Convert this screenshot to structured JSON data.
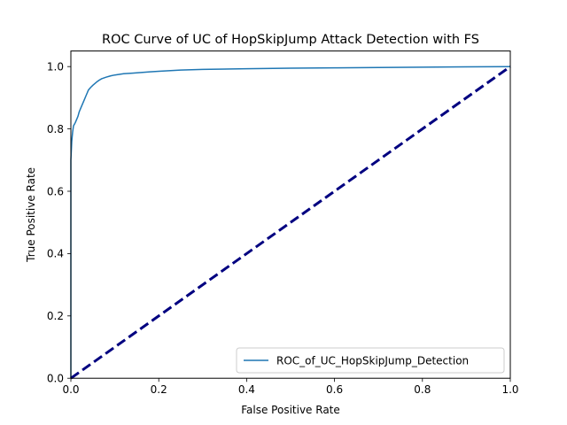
{
  "chart_data": {
    "type": "line",
    "title": "ROC Curve of UC of HopSkipJump Attack Detection with FS",
    "xlabel": "False Positive Rate",
    "ylabel": "True Positive Rate",
    "xlim": [
      0.0,
      1.0
    ],
    "ylim": [
      0.0,
      1.05
    ],
    "xticks": [
      "0.0",
      "0.2",
      "0.4",
      "0.6",
      "0.8",
      "1.0"
    ],
    "yticks": [
      "0.0",
      "0.2",
      "0.4",
      "0.6",
      "0.8",
      "1.0"
    ],
    "grid": false,
    "legend_position": "lower-right",
    "series": [
      {
        "name": "ROC_of_UC_HopSkipJump_Detection",
        "color": "#1f77b4",
        "style": "solid",
        "x": [
          0.0,
          0.0,
          0.002,
          0.004,
          0.006,
          0.008,
          0.01,
          0.013,
          0.016,
          0.019,
          0.022,
          0.025,
          0.028,
          0.031,
          0.034,
          0.037,
          0.04,
          0.045,
          0.05,
          0.055,
          0.06,
          0.065,
          0.07,
          0.08,
          0.09,
          0.1,
          0.11,
          0.12,
          0.14,
          0.16,
          0.18,
          0.2,
          0.25,
          0.3,
          0.4,
          0.5,
          0.6,
          0.7,
          0.8,
          0.9,
          1.0
        ],
        "y": [
          0.0,
          0.7,
          0.76,
          0.79,
          0.81,
          0.815,
          0.82,
          0.83,
          0.84,
          0.855,
          0.865,
          0.875,
          0.885,
          0.895,
          0.905,
          0.915,
          0.925,
          0.933,
          0.94,
          0.946,
          0.952,
          0.957,
          0.961,
          0.966,
          0.97,
          0.973,
          0.975,
          0.977,
          0.979,
          0.981,
          0.983,
          0.985,
          0.989,
          0.991,
          0.993,
          0.995,
          0.996,
          0.997,
          0.998,
          0.999,
          1.0
        ]
      },
      {
        "name": "",
        "color": "#000080",
        "style": "dashed",
        "x": [
          0.0,
          1.0
        ],
        "y": [
          0.0,
          1.0
        ]
      }
    ]
  }
}
